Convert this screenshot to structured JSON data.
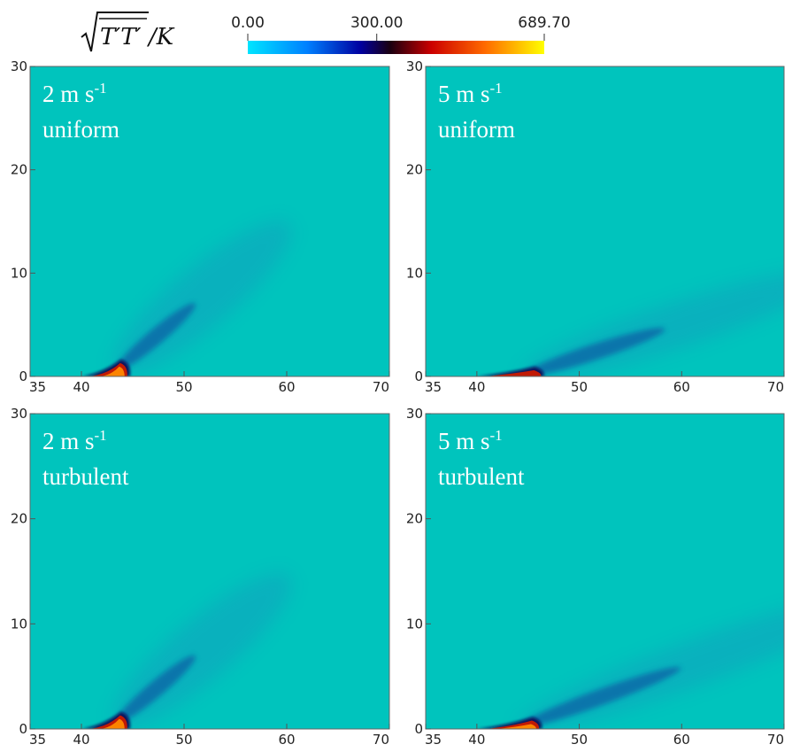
{
  "chart_data": {
    "type": "heatmap",
    "colorbar": {
      "title": "√(T′T′)/K",
      "min": 0.0,
      "max": 689.7,
      "ticks": [
        "0.00",
        "300.00",
        "689.70"
      ],
      "tick_values": [
        0,
        300,
        689.7
      ],
      "colormap": [
        "#00e5ff",
        "#0080ff",
        "#0000a0",
        "#1a0010",
        "#cc0000",
        "#ff6a00",
        "#ffff00"
      ],
      "background_color": "#00c4bd"
    },
    "panels": [
      {
        "label_line1": "2 m s",
        "label_sup": "-1",
        "label_line2": "uniform",
        "xlim": [
          35,
          70
        ],
        "ylim": [
          0,
          30
        ],
        "xticks": [
          "35",
          "40",
          "50",
          "60",
          "70"
        ],
        "xtick_values": [
          35,
          40,
          50,
          60,
          70
        ],
        "yticks": [
          "0",
          "10",
          "20",
          "30"
        ],
        "ytick_values": [
          0,
          10,
          20,
          30
        ],
        "plume": {
          "source_x": 40,
          "peak_x": 44.2,
          "peak_y": 1.3,
          "peak_value": 689.7,
          "spread_angle_deg": 40,
          "length": 18
        }
      },
      {
        "label_line1": "5 m s",
        "label_sup": "-1",
        "label_line2": "uniform",
        "xlim": [
          35,
          70
        ],
        "ylim": [
          0,
          30
        ],
        "xticks": [
          "35",
          "40",
          "50",
          "60",
          "70"
        ],
        "xtick_values": [
          35,
          40,
          50,
          60,
          70
        ],
        "yticks": [
          "0",
          "10",
          "20",
          "30"
        ],
        "ytick_values": [
          0,
          10,
          20,
          30
        ],
        "plume": {
          "source_x": 40,
          "peak_x": 46.0,
          "peak_y": 0.6,
          "peak_value": 500,
          "spread_angle_deg": 18,
          "length": 26
        }
      },
      {
        "label_line1": "2 m s",
        "label_sup": "-1",
        "label_line2": "turbulent",
        "xlim": [
          35,
          70
        ],
        "ylim": [
          0,
          30
        ],
        "xticks": [
          "35",
          "40",
          "50",
          "60",
          "70"
        ],
        "xtick_values": [
          35,
          40,
          50,
          60,
          70
        ],
        "yticks": [
          "0",
          "10",
          "20",
          "30"
        ],
        "ytick_values": [
          0,
          10,
          20,
          30
        ],
        "plume": {
          "source_x": 40,
          "peak_x": 44.2,
          "peak_y": 1.3,
          "peak_value": 689.7,
          "spread_angle_deg": 40,
          "length": 18
        }
      },
      {
        "label_line1": "5 m s",
        "label_sup": "-1",
        "label_line2": "turbulent",
        "xlim": [
          35,
          70
        ],
        "ylim": [
          0,
          30
        ],
        "xticks": [
          "35",
          "40",
          "50",
          "60",
          "70"
        ],
        "xtick_values": [
          35,
          40,
          50,
          60,
          70
        ],
        "yticks": [
          "0",
          "10",
          "20",
          "30"
        ],
        "ytick_values": [
          0,
          10,
          20,
          30
        ],
        "plume": {
          "source_x": 40,
          "peak_x": 45.8,
          "peak_y": 0.8,
          "peak_value": 689.7,
          "spread_angle_deg": 20,
          "length": 30
        }
      }
    ]
  }
}
